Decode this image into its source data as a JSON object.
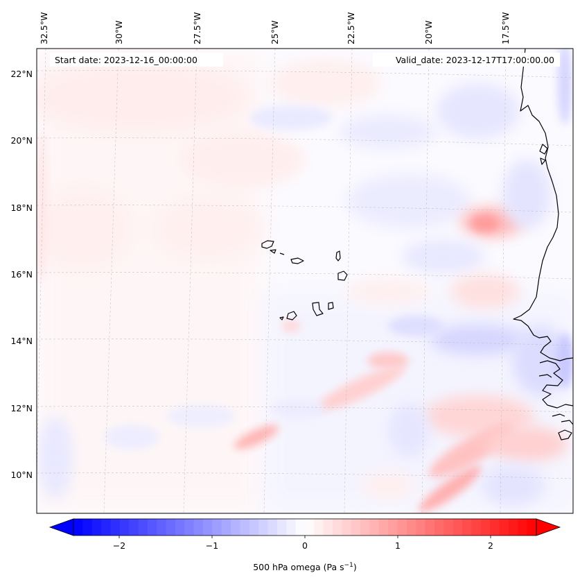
{
  "header": {
    "start_date": "Start date: 2023-12-16_00:00:00",
    "valid_date": "Valid_date: 2023-12-17T17:00:00.00"
  },
  "map": {
    "projection": "lambert-conformal",
    "lon_labels": [
      "32.5°W",
      "30°W",
      "27.5°W",
      "25°W",
      "22.5°W",
      "20°W",
      "17.5°W"
    ],
    "lat_labels": [
      "22°N",
      "20°N",
      "18°N",
      "16°N",
      "14°N",
      "12°N",
      "10°N"
    ],
    "gridlines": "dashed",
    "features": [
      "Cape Verde islands",
      "West African coastline"
    ]
  },
  "colorbar": {
    "label_main": "500 hPa omega (Pa s",
    "label_exp": "−1",
    "label_end": ")",
    "ticks": [
      "−2",
      "−1",
      "0",
      "1",
      "2"
    ],
    "range": [
      -2.5,
      2.5
    ],
    "colormap": "bwr",
    "extend": "both",
    "low_color": "#0000ff",
    "mid_color": "#ffffff",
    "high_color": "#ff0000"
  }
}
